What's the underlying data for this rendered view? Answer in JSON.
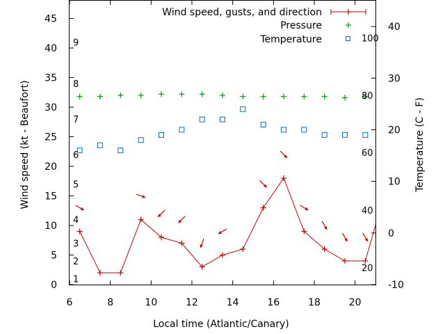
{
  "chart_data": {
    "type": "line",
    "xlabel": "Local time (Atlantic/Canary)",
    "ylabel": "Wind speed (kt - Beaufort)",
    "y2label": "Temperature (C - F)",
    "xlim": [
      6,
      21
    ],
    "ylim": [
      0,
      48
    ],
    "y2lim": [
      -10,
      45
    ],
    "x_ticks": [
      6,
      8,
      10,
      12,
      14,
      16,
      18,
      20
    ],
    "y_ticks": [
      0,
      5,
      10,
      15,
      20,
      25,
      30,
      35,
      40,
      45
    ],
    "y2_ticks": [
      -10,
      0,
      10,
      20,
      30,
      40
    ],
    "beaufort_labels": [
      {
        "label": "1",
        "knots": 1
      },
      {
        "label": "2",
        "knots": 4
      },
      {
        "label": "3",
        "knots": 7
      },
      {
        "label": "4",
        "knots": 11
      },
      {
        "label": "5",
        "knots": 17
      },
      {
        "label": "6",
        "knots": 22
      },
      {
        "label": "7",
        "knots": 28
      },
      {
        "label": "8",
        "knots": 34
      },
      {
        "label": "9",
        "knots": 41
      }
    ],
    "fahrenheit_labels": [
      {
        "label": "20",
        "celsius": -6.7
      },
      {
        "label": "40",
        "celsius": 4.4
      },
      {
        "label": "60",
        "celsius": 15.6
      },
      {
        "label": "80",
        "celsius": 26.7
      },
      {
        "label": "100",
        "celsius": 37.8
      }
    ],
    "series": [
      {
        "name": "Wind speed, gusts, and direction",
        "color": "#cc0000",
        "x": [
          6.5,
          7.5,
          8.5,
          9.5,
          10.5,
          11.5,
          12.5,
          13.5,
          14.5,
          15.5,
          16.5,
          17.5,
          18.5,
          19.5,
          20.5,
          21
        ],
        "values": [
          9,
          2,
          2,
          11,
          8,
          7,
          3,
          5,
          6,
          13,
          18,
          9,
          6,
          4,
          4,
          10
        ],
        "direction_arrows": [
          {
            "x": 6.5,
            "y": 13,
            "dir": 300
          },
          {
            "x": 9.5,
            "y": 15,
            "dir": 290
          },
          {
            "x": 10.5,
            "y": 12,
            "dir": 45
          },
          {
            "x": 11.5,
            "y": 11,
            "dir": 45
          },
          {
            "x": 12.5,
            "y": 7,
            "dir": 20
          },
          {
            "x": 13.5,
            "y": 9,
            "dir": 60
          },
          {
            "x": 15.5,
            "y": 17,
            "dir": 315
          },
          {
            "x": 16.5,
            "y": 22,
            "dir": 315
          },
          {
            "x": 17.5,
            "y": 13,
            "dir": 300
          },
          {
            "x": 18.5,
            "y": 10,
            "dir": 330
          },
          {
            "x": 19.5,
            "y": 8,
            "dir": 330
          },
          {
            "x": 20.5,
            "y": 8,
            "dir": 330
          }
        ]
      },
      {
        "name": "Pressure",
        "color": "#00a000",
        "axis": "y",
        "x": [
          6.5,
          7.5,
          8.5,
          9.5,
          10.5,
          11.5,
          12.5,
          13.5,
          14.5,
          15.5,
          16.5,
          17.5,
          18.5,
          19.5,
          20.5
        ],
        "values": [
          31.8,
          31.8,
          32.0,
          32.0,
          32.2,
          32.2,
          32.2,
          32.0,
          31.8,
          31.8,
          31.8,
          31.8,
          31.8,
          31.6,
          31.8
        ]
      },
      {
        "name": "Temperature",
        "color": "#0070c0",
        "axis": "y2",
        "x": [
          6.5,
          7.5,
          8.5,
          9.5,
          10.5,
          11.5,
          12.5,
          13.5,
          14.5,
          15.5,
          16.5,
          17.5,
          18.5,
          19.5,
          20.5
        ],
        "values": [
          16,
          17,
          16,
          18,
          19,
          20,
          22,
          22,
          24,
          21,
          20,
          20,
          19,
          19,
          19
        ]
      }
    ]
  }
}
